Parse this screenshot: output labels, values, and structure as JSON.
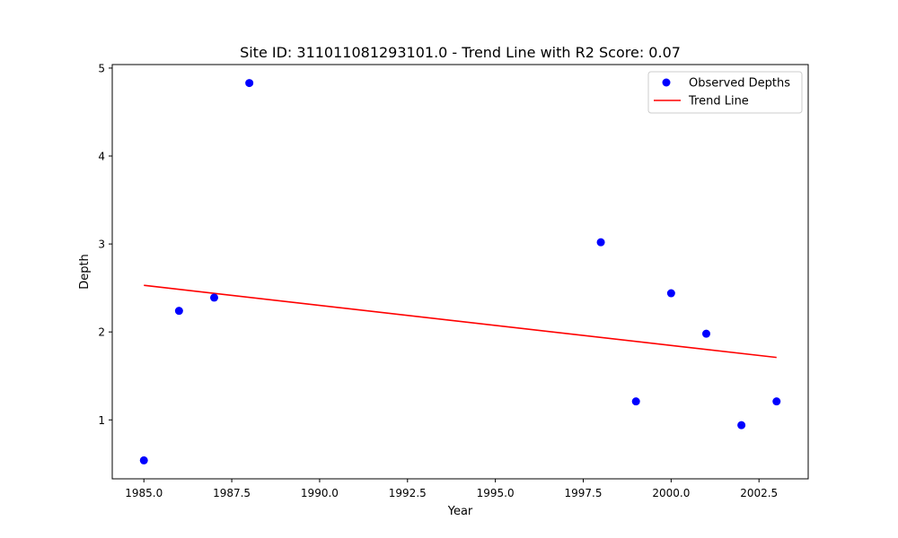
{
  "chart_data": {
    "type": "scatter",
    "title": "Site ID: 311011081293101.0 - Trend Line with R2 Score: 0.07",
    "xlabel": "Year",
    "ylabel": "Depth",
    "xlim": [
      1984.1,
      2003.9
    ],
    "ylim": [
      0.33,
      5.04
    ],
    "xticks": [
      1985.0,
      1987.5,
      1990.0,
      1992.5,
      1995.0,
      1997.5,
      2000.0,
      2002.5
    ],
    "xtick_labels": [
      "1985.0",
      "1987.5",
      "1990.0",
      "1992.5",
      "1995.0",
      "1997.5",
      "2000.0",
      "2002.5"
    ],
    "yticks": [
      1,
      2,
      3,
      4,
      5
    ],
    "ytick_labels": [
      "1",
      "2",
      "3",
      "4",
      "5"
    ],
    "grid": false,
    "legend_position": "upper-right",
    "series": [
      {
        "name": "Observed Depths",
        "kind": "scatter",
        "color": "#0000ff",
        "x": [
          1985,
          1986,
          1987,
          1988,
          1998,
          1999,
          2000,
          2001,
          2002,
          2003
        ],
        "y": [
          0.54,
          2.24,
          2.39,
          4.83,
          3.02,
          1.21,
          2.44,
          1.98,
          0.94,
          1.21
        ]
      },
      {
        "name": "Trend Line",
        "kind": "line",
        "color": "#ff0000",
        "x": [
          1985,
          2003
        ],
        "y": [
          2.53,
          1.71
        ]
      }
    ]
  }
}
